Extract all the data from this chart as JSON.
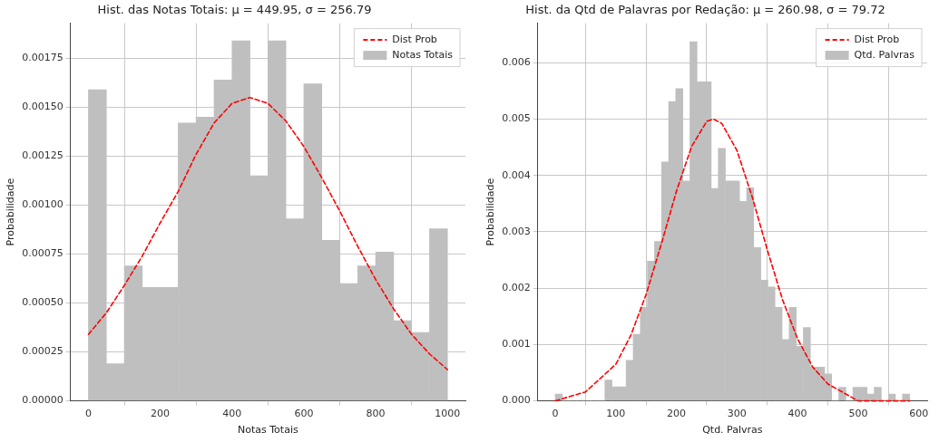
{
  "chart_data": [
    {
      "type": "histogram",
      "title": "Hist. das Notas Totais: μ = 449.95, σ = 256.79",
      "xlabel": "Notas Totais",
      "ylabel": "Probabilidade",
      "bins": [
        0,
        50,
        100,
        150,
        200,
        250,
        300,
        350,
        400,
        450,
        500,
        550,
        600,
        650,
        700,
        750,
        800,
        850,
        900,
        950,
        1000
      ],
      "series": [
        {
          "name": "Dist Prob",
          "type": "line",
          "color": "#ff0000",
          "line_style": "dashed",
          "marker": "none",
          "x": [
            0,
            50,
            100,
            150,
            200,
            250,
            300,
            350,
            400,
            450,
            500,
            550,
            600,
            650,
            700,
            750,
            800,
            850,
            900,
            950,
            1000
          ],
          "values": [
            0.00034,
            0.00045,
            0.00059,
            0.00074,
            0.00091,
            0.00107,
            0.00126,
            0.00142,
            0.00152,
            0.00155,
            0.00152,
            0.00143,
            0.0013,
            0.00114,
            0.00097,
            0.00079,
            0.00062,
            0.00047,
            0.00034,
            0.00024,
            0.00016
          ]
        },
        {
          "name": "Notas Totais",
          "color": "#bfbfbf",
          "values": [
            0.00159,
            0.00019,
            0.00069,
            0.00058,
            0.00058,
            0.00142,
            0.00145,
            0.00164,
            0.00184,
            0.00115,
            0.00184,
            0.00093,
            0.00162,
            0.00082,
            0.0006,
            0.00069,
            0.00076,
            0.00041,
            0.00035,
            0.00088
          ]
        }
      ],
      "xlim": [
        -50,
        1050
      ],
      "xticks": [
        0,
        200,
        400,
        600,
        800,
        1000
      ],
      "ylim": [
        0,
        0.00193
      ],
      "yticks": [
        {
          "value": 0,
          "label": "0.00000"
        },
        {
          "value": 0.00025,
          "label": "0.00025"
        },
        {
          "value": 0.0005,
          "label": "0.00050"
        },
        {
          "value": 0.00075,
          "label": "0.00075"
        },
        {
          "value": 0.001,
          "label": "0.00100"
        },
        {
          "value": 0.00125,
          "label": "0.00125"
        },
        {
          "value": 0.0015,
          "label": "0.00150"
        },
        {
          "value": 0.00175,
          "label": "0.00175"
        }
      ],
      "grid": true,
      "legend": "top right"
    },
    {
      "type": "histogram",
      "title": "Hist. da Qtd de Palavras por Redação: μ = 260.98, σ = 79.72",
      "xlabel": "Qtd. Palvras",
      "ylabel": "Probabilidade",
      "bins": [
        0,
        11.7,
        23.4,
        35.1,
        46.8,
        58.5,
        70.2,
        81.9,
        93.6,
        105.3,
        117,
        128.7,
        140.4,
        152.1,
        163.8,
        175.5,
        187.2,
        198.9,
        210.6,
        222.3,
        234,
        245.7,
        257.4,
        269.1,
        280.8,
        292.5,
        304.2,
        315.9,
        327.6,
        339.3,
        351,
        362.7,
        374.4,
        386.1,
        397.8,
        409.5,
        421.2,
        432.9,
        444.6,
        456.3,
        468,
        479.7,
        491.4,
        503.1,
        514.8,
        526.5,
        538.2,
        549.9,
        561.6,
        573.3,
        585
      ],
      "series": [
        {
          "name": "Dist Prob",
          "type": "line",
          "color": "#ff0000",
          "line_style": "dashed",
          "marker": "none",
          "x": [
            0,
            50,
            100,
            125,
            150,
            175,
            200,
            225,
            250,
            261,
            275,
            300,
            325,
            350,
            375,
            400,
            425,
            450,
            500,
            585
          ],
          "values": [
            0,
            0.00016,
            0.00065,
            0.00117,
            0.00189,
            0.00278,
            0.00372,
            0.00451,
            0.00496,
            0.005,
            0.00492,
            0.00444,
            0.00362,
            0.00268,
            0.0018,
            0.0011,
            0.0006,
            0.0003,
            0,
            0
          ]
        },
        {
          "name": "Qtd. Palvras",
          "color": "#bfbfbf",
          "values": [
            0.00012,
            0,
            0,
            0,
            0,
            0,
            0,
            0.00037,
            0.00025,
            0.00025,
            0.00072,
            0.00118,
            0.00166,
            0.00248,
            0.00283,
            0.00424,
            0.00531,
            0.00554,
            0.0039,
            0.00637,
            0.00566,
            0.00566,
            0.00377,
            0.00448,
            0.0039,
            0.0039,
            0.00354,
            0.00378,
            0.00272,
            0.00214,
            0.00202,
            0.00166,
            0.00109,
            0.00166,
            0.00097,
            0.0013,
            0.0006,
            0.0006,
            0.00048,
            0,
            0.00024,
            0,
            0.00024,
            0.00024,
            0.00012,
            0.00024,
            0,
            0.00012,
            0,
            0.00012
          ]
        }
      ],
      "xlim": [
        -29,
        614
      ],
      "xticks": [
        0,
        100,
        200,
        300,
        400,
        500,
        600
      ],
      "ylim": [
        0,
        0.0067
      ],
      "yticks": [
        {
          "value": 0,
          "label": "0.000"
        },
        {
          "value": 0.001,
          "label": "0.001"
        },
        {
          "value": 0.002,
          "label": "0.002"
        },
        {
          "value": 0.003,
          "label": "0.003"
        },
        {
          "value": 0.004,
          "label": "0.004"
        },
        {
          "value": 0.005,
          "label": "0.005"
        },
        {
          "value": 0.006,
          "label": "0.006"
        }
      ],
      "grid": true,
      "legend": "top right"
    }
  ]
}
